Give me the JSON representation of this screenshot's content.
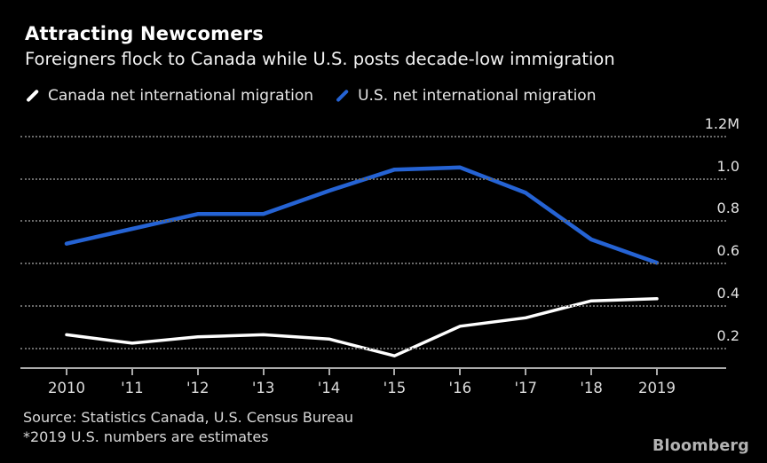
{
  "header": {
    "title": "Attracting Newcomers",
    "subtitle": "Foreigners flock to Canada while U.S. posts decade-low immigration"
  },
  "legend": [
    {
      "label": "Canada net international migration",
      "color": "#ffffff",
      "marker": "slash-icon"
    },
    {
      "label": "U.S. net international migration",
      "color": "#2563d4",
      "marker": "slash-icon"
    }
  ],
  "chart_data": {
    "type": "line",
    "x": [
      2010,
      2011,
      2012,
      2013,
      2014,
      2015,
      2016,
      2017,
      2018,
      2019
    ],
    "x_tick_labels": [
      "2010",
      "'11",
      "'12",
      "'13",
      "'14",
      "'15",
      "'16",
      "'17",
      "'18",
      "2019"
    ],
    "series": [
      {
        "name": "Canada net international migration",
        "color": "#ffffff",
        "stroke_width": 3.5,
        "values": [
          0.26,
          0.22,
          0.25,
          0.26,
          0.24,
          0.16,
          0.3,
          0.34,
          0.42,
          0.43
        ]
      },
      {
        "name": "U.S. net international migration",
        "color": "#2563d4",
        "stroke_width": 4.5,
        "values": [
          0.69,
          0.76,
          0.83,
          0.83,
          0.94,
          1.04,
          1.05,
          0.93,
          0.71,
          0.6
        ]
      }
    ],
    "y_ticks": [
      {
        "value": 0.2,
        "label": "0.2"
      },
      {
        "value": 0.4,
        "label": "0.4"
      },
      {
        "value": 0.6,
        "label": "0.6"
      },
      {
        "value": 0.8,
        "label": "0.8"
      },
      {
        "value": 1.0,
        "label": "1.0"
      },
      {
        "value": 1.2,
        "label": "1.2M"
      }
    ],
    "unit": "millions of people",
    "ylim": [
      0.1,
      1.3
    ],
    "xlabel": "",
    "ylabel": "",
    "grid": "horizontal-dotted",
    "legend_position": "top-left"
  },
  "footer": {
    "source": "Source: Statistics Canada, U.S. Census Bureau",
    "note": "*2019 U.S. numbers are estimates",
    "brand": "Bloomberg"
  },
  "colors": {
    "background": "#000000",
    "title_text": "#ffffff",
    "axis_line": "#aaaaaa",
    "gridline": "#6a6a6a",
    "canada_line": "#ffffff",
    "us_line": "#2563d4",
    "brand_text": "#b3b3b3"
  }
}
